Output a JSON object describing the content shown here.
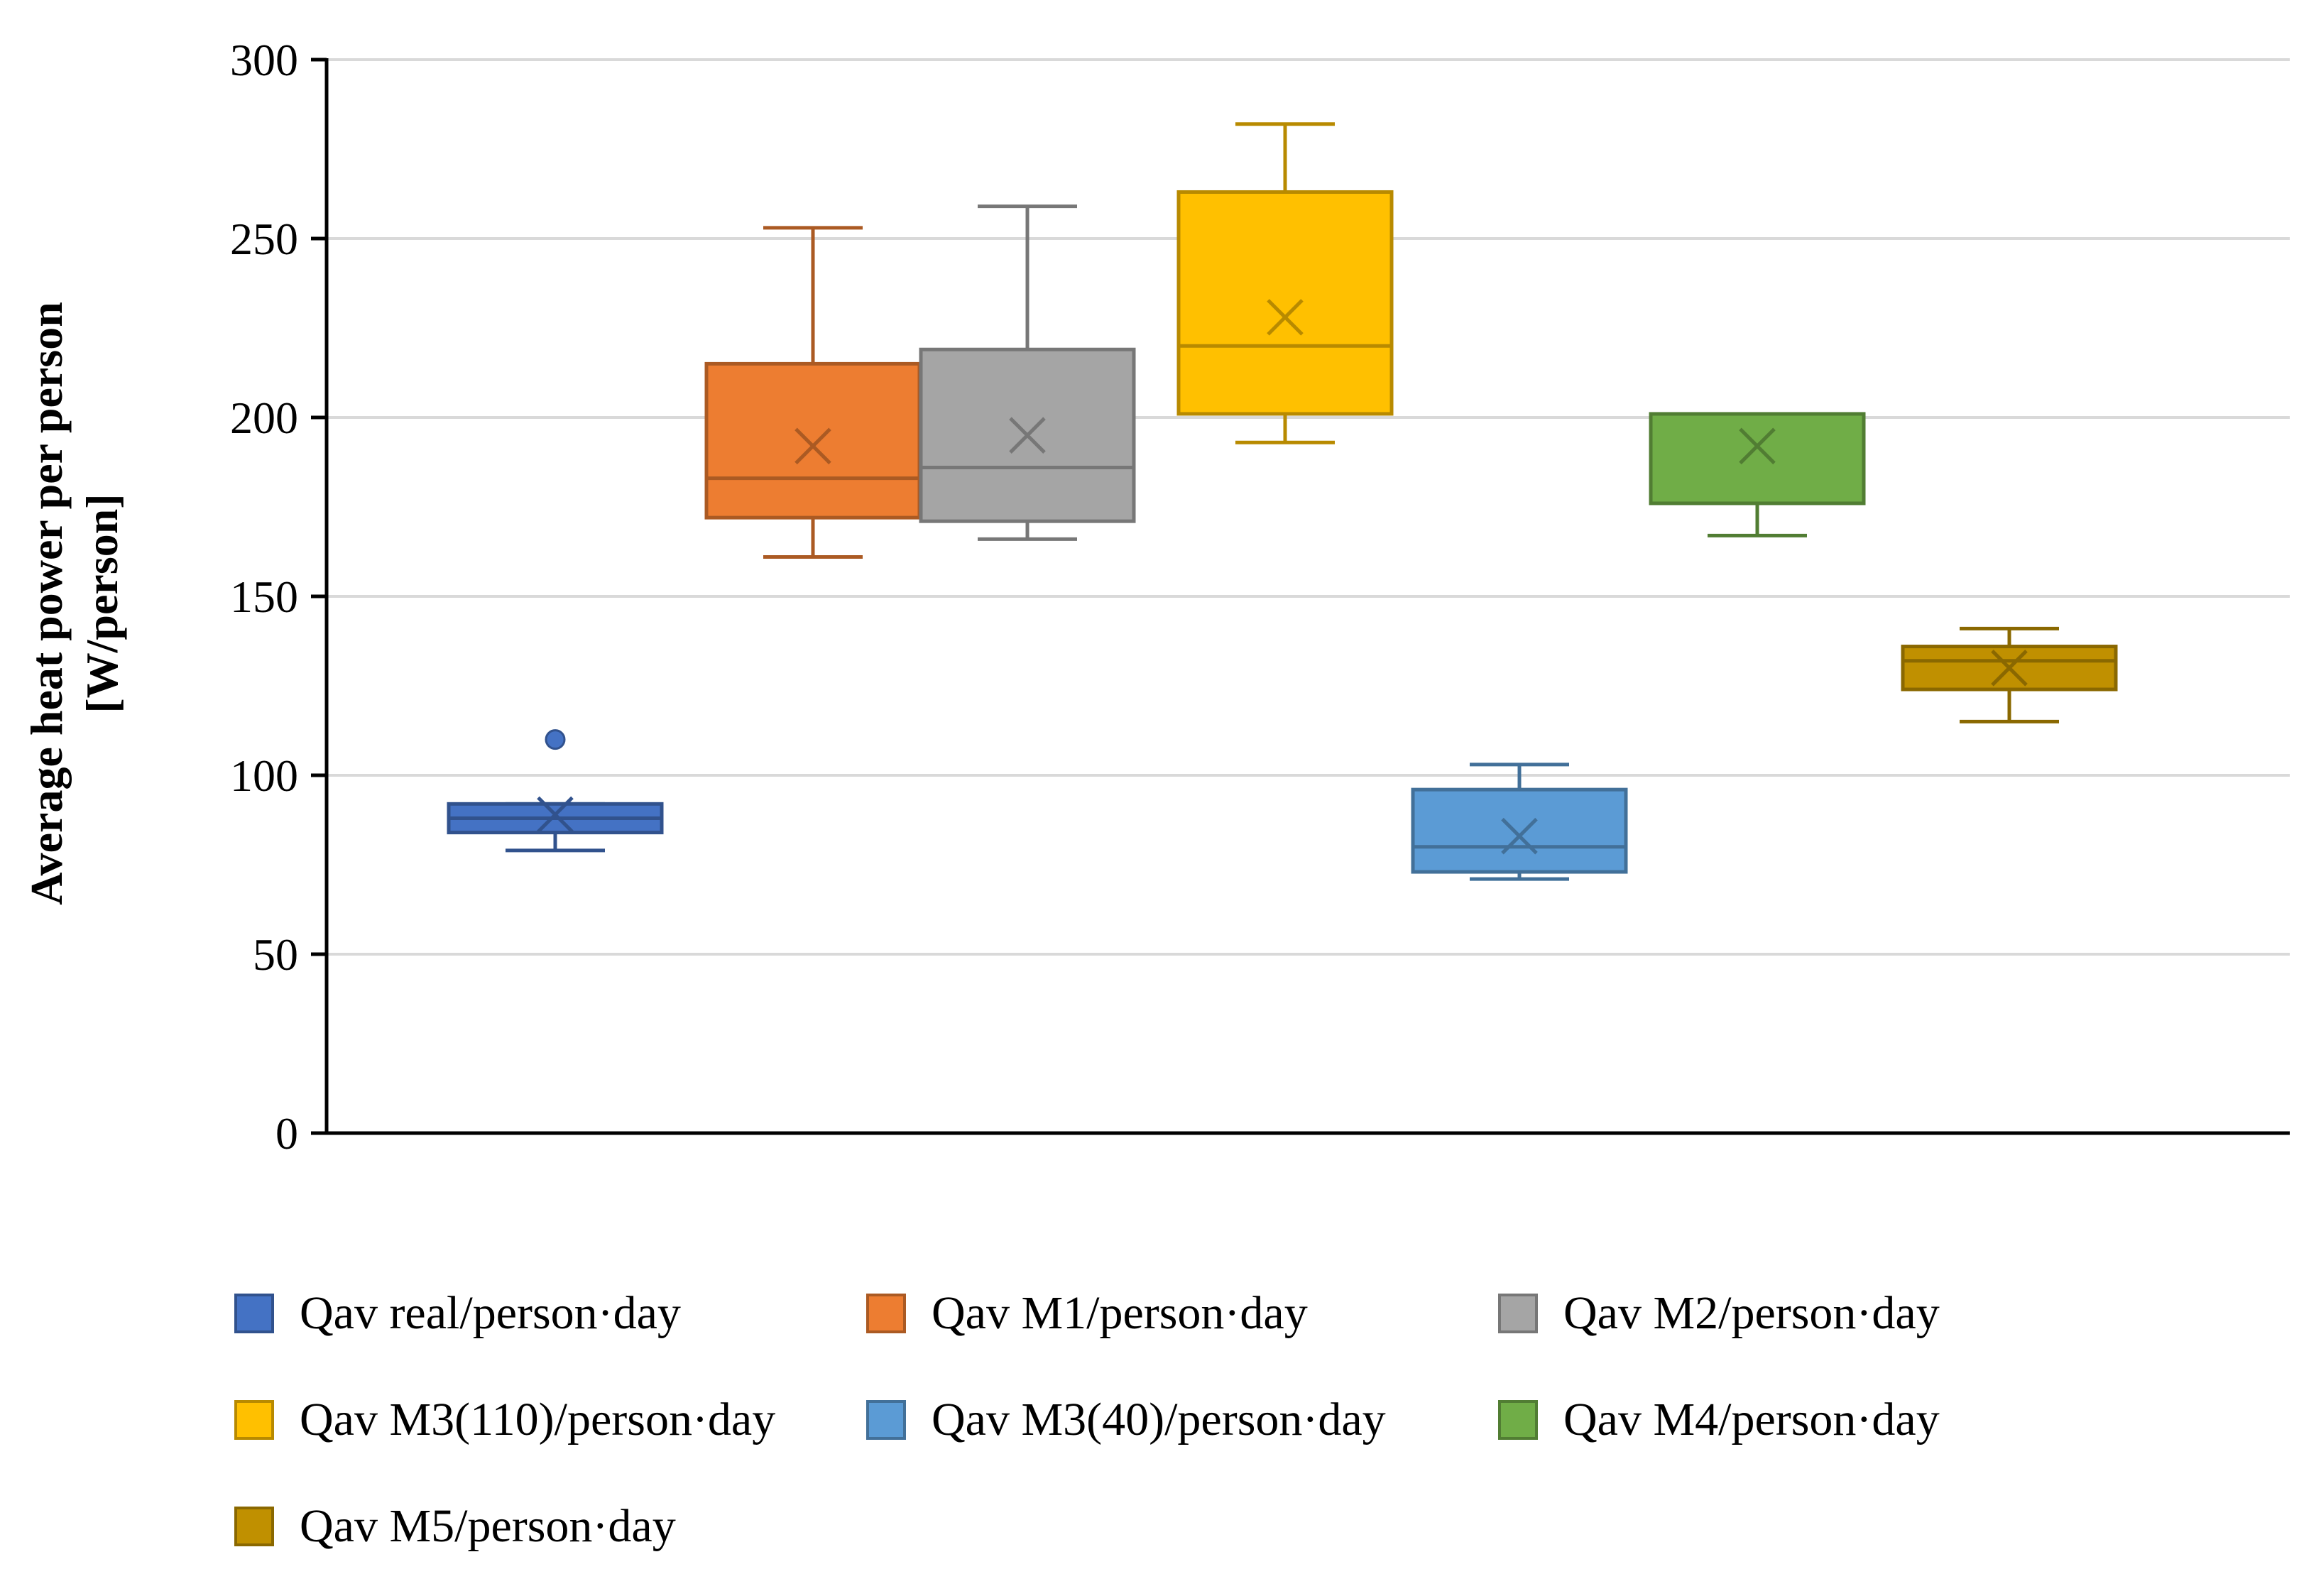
{
  "chart_data": {
    "type": "box",
    "title": "",
    "xlabel": "",
    "ylabel_lines": [
      "Average heat power per person",
      "[W/person]"
    ],
    "ylim": [
      0,
      300
    ],
    "yticks": [
      0,
      50,
      100,
      150,
      200,
      250,
      300
    ],
    "grid": true,
    "legend_position": "bottom",
    "series": [
      {
        "name": "Qav real/person·day",
        "color": "#4472C4",
        "min": 79,
        "q1": 84,
        "median": 88,
        "q3": 92,
        "max": 92,
        "mean": 89,
        "outliers": [
          110
        ]
      },
      {
        "name": "Qav M1/person·day",
        "color": "#ED7D31",
        "min": 161,
        "q1": 172,
        "median": 183,
        "q3": 215,
        "max": 253,
        "mean": 192,
        "outliers": []
      },
      {
        "name": "Qav M2/person·day",
        "color": "#A5A5A5",
        "min": 166,
        "q1": 171,
        "median": 186,
        "q3": 219,
        "max": 259,
        "mean": 195,
        "outliers": []
      },
      {
        "name": "Qav M3(110)/person·day",
        "color": "#FFC000",
        "min": 193,
        "q1": 201,
        "median": 220,
        "q3": 263,
        "max": 282,
        "mean": 228,
        "outliers": []
      },
      {
        "name": "Qav M3(40)/person·day",
        "color": "#5B9BD5",
        "min": 71,
        "q1": 73,
        "median": 80,
        "q3": 96,
        "max": 103,
        "mean": 83,
        "outliers": []
      },
      {
        "name": "Qav M4/person·day",
        "color": "#70AD47",
        "min": 167,
        "q1": 176,
        "median": 201,
        "q3": 201,
        "max": 201,
        "mean": 192,
        "outliers": []
      },
      {
        "name": "Qav M5/person·day",
        "color": "#C09000",
        "min": 115,
        "q1": 124,
        "median": 132,
        "q3": 136,
        "max": 141,
        "mean": 130,
        "outliers": []
      }
    ]
  }
}
